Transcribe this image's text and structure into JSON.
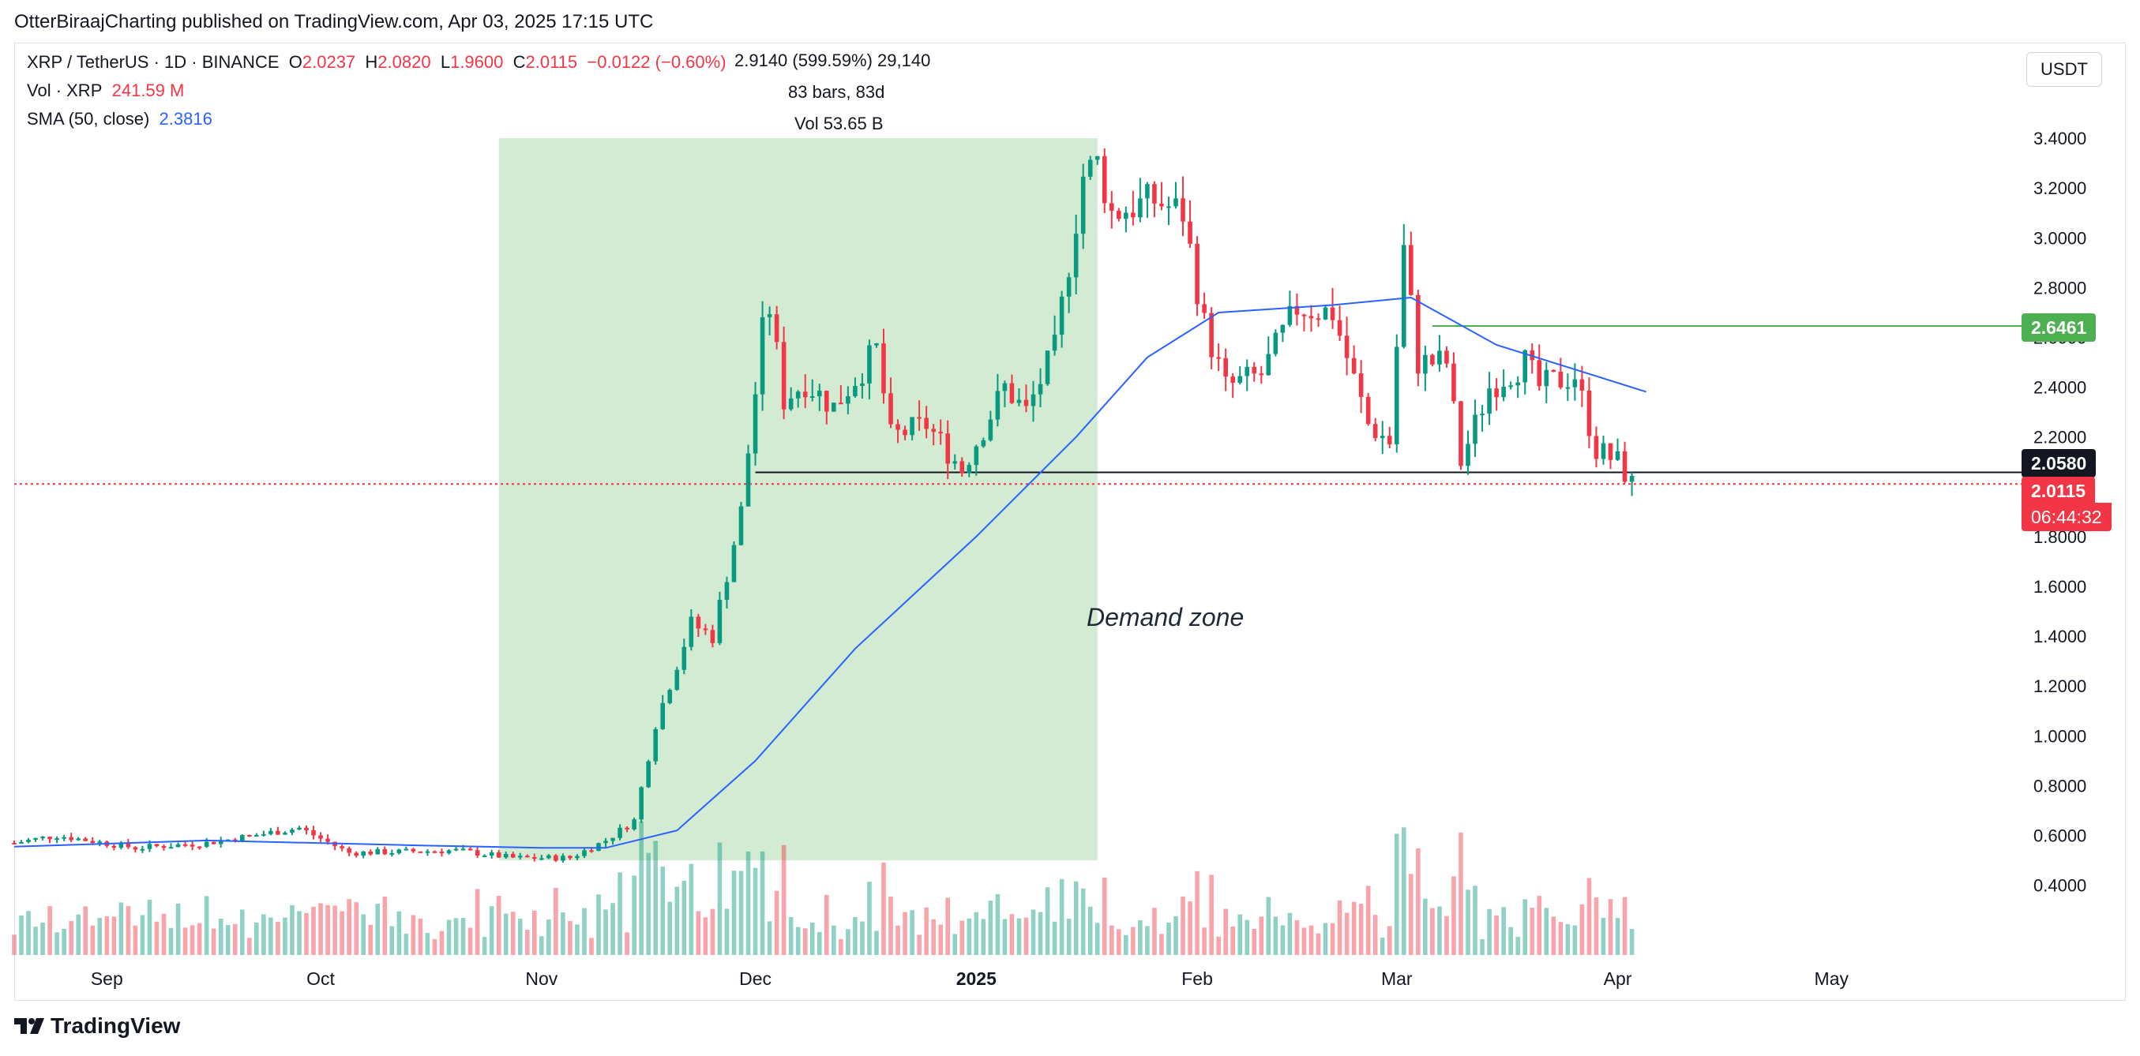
{
  "publisher_line": "OtterBiraajCharting published on TradingView.com, Apr 03, 2025 17:15 UTC",
  "legend": {
    "symbol": "XRP / TetherUS · 1D · BINANCE",
    "o_label": "O",
    "o_value": "2.0237",
    "h_label": "H",
    "h_value": "2.0820",
    "l_label": "L",
    "l_value": "1.9600",
    "c_label": "C",
    "c_value": "2.0115",
    "change": "−0.0122 (−0.60%)",
    "vol_label": "Vol · XRP",
    "vol_value": "241.59 M",
    "sma_label": "SMA (50, close)",
    "sma_value": "2.3816"
  },
  "measure": {
    "line1": "2.9140 (599.59%) 29,140",
    "line2": "83 bars, 83d",
    "line3": "Vol 53.65 B"
  },
  "currency_button": "USDT",
  "price_tags": {
    "resistance": "2.6461",
    "support": "2.0580",
    "last_price": "2.0115",
    "countdown": "06:44:32"
  },
  "annotation": "Demand zone",
  "brand": "TradingView",
  "colors": {
    "up": "#089981",
    "down": "#f23645",
    "sma": "#2962ff",
    "zone": "#cde9cd",
    "resistance": "#4caf50",
    "support": "#131722"
  },
  "chart_data": {
    "type": "candlestick",
    "symbol": "XRP / TetherUS",
    "interval": "1D",
    "exchange": "BINANCE",
    "y_axis": {
      "ticks": [
        0.4,
        0.6,
        0.8,
        1.0,
        1.2,
        1.4,
        1.6,
        1.8,
        2.0,
        2.2,
        2.4,
        2.6,
        2.8,
        3.0,
        3.2,
        3.4
      ],
      "tick_labels": [
        "0.4000",
        "0.6000",
        "0.8000",
        "1.0000",
        "1.2000",
        "1.4000",
        "1.6000",
        "1.8000",
        "2.0000",
        "2.2000",
        "2.4000",
        "2.6000",
        "2.8000",
        "3.0000",
        "3.2000",
        "3.4000"
      ],
      "range": [
        0.12,
        3.6
      ]
    },
    "x_axis": {
      "range": [
        "2024-08-19",
        "2025-05-31"
      ],
      "ticks": [
        {
          "date": "2024-09-01",
          "label": "Sep"
        },
        {
          "date": "2024-10-01",
          "label": "Oct"
        },
        {
          "date": "2024-11-01",
          "label": "Nov"
        },
        {
          "date": "2024-12-01",
          "label": "Dec"
        },
        {
          "date": "2025-01-01",
          "label": "2025"
        },
        {
          "date": "2025-02-01",
          "label": "Feb"
        },
        {
          "date": "2025-03-01",
          "label": "Mar"
        },
        {
          "date": "2025-04-01",
          "label": "Apr"
        },
        {
          "date": "2025-05-01",
          "label": "May"
        }
      ]
    },
    "keypoints": [
      [
        "2024-08-19",
        0.57
      ],
      [
        "2024-08-25",
        0.6
      ],
      [
        "2024-09-05",
        0.55
      ],
      [
        "2024-09-15",
        0.57
      ],
      [
        "2024-09-28",
        0.63
      ],
      [
        "2024-10-05",
        0.53
      ],
      [
        "2024-10-20",
        0.54
      ],
      [
        "2024-10-28",
        0.51
      ],
      [
        "2024-11-05",
        0.51
      ],
      [
        "2024-11-10",
        0.58
      ],
      [
        "2024-11-14",
        0.66
      ],
      [
        "2024-11-17",
        1.05
      ],
      [
        "2024-11-22",
        1.45
      ],
      [
        "2024-11-25",
        1.4
      ],
      [
        "2024-11-29",
        1.9
      ],
      [
        "2024-12-02",
        2.62
      ],
      [
        "2024-12-03",
        2.72
      ],
      [
        "2024-12-05",
        2.35
      ],
      [
        "2024-12-08",
        2.42
      ],
      [
        "2024-12-12",
        2.32
      ],
      [
        "2024-12-18",
        2.55
      ],
      [
        "2024-12-20",
        2.2
      ],
      [
        "2024-12-25",
        2.25
      ],
      [
        "2024-12-30",
        2.07
      ],
      [
        "2025-01-05",
        2.4
      ],
      [
        "2025-01-08",
        2.3
      ],
      [
        "2025-01-12",
        2.55
      ],
      [
        "2025-01-16",
        3.25
      ],
      [
        "2025-01-18",
        3.3
      ],
      [
        "2025-01-20",
        3.1
      ],
      [
        "2025-01-26",
        3.15
      ],
      [
        "2025-01-30",
        3.1
      ],
      [
        "2025-02-02",
        2.65
      ],
      [
        "2025-02-05",
        2.4
      ],
      [
        "2025-02-10",
        2.45
      ],
      [
        "2025-02-15",
        2.72
      ],
      [
        "2025-02-20",
        2.7
      ],
      [
        "2025-02-25",
        2.25
      ],
      [
        "2025-02-28",
        2.18
      ],
      [
        "2025-03-02",
        2.95
      ],
      [
        "2025-03-04",
        2.5
      ],
      [
        "2025-03-08",
        2.5
      ],
      [
        "2025-03-10",
        2.1
      ],
      [
        "2025-03-14",
        2.4
      ],
      [
        "2025-03-19",
        2.5
      ],
      [
        "2025-03-21",
        2.4
      ],
      [
        "2025-03-26",
        2.45
      ],
      [
        "2025-03-29",
        2.15
      ],
      [
        "2025-04-01",
        2.1
      ],
      [
        "2025-04-03",
        2.0115
      ]
    ],
    "sma": {
      "name": "SMA (50, close)",
      "points": [
        [
          "2024-08-19",
          0.555
        ],
        [
          "2024-09-15",
          0.58
        ],
        [
          "2024-10-15",
          0.56
        ],
        [
          "2024-11-01",
          0.55
        ],
        [
          "2024-11-10",
          0.55
        ],
        [
          "2024-11-20",
          0.62
        ],
        [
          "2024-12-01",
          0.9
        ],
        [
          "2024-12-15",
          1.35
        ],
        [
          "2025-01-01",
          1.8
        ],
        [
          "2025-01-15",
          2.2
        ],
        [
          "2025-01-25",
          2.52
        ],
        [
          "2025-02-04",
          2.7
        ],
        [
          "2025-02-20",
          2.73
        ],
        [
          "2025-03-03",
          2.76
        ],
        [
          "2025-03-15",
          2.57
        ],
        [
          "2025-04-05",
          2.3816
        ]
      ]
    },
    "horizontal_lines": [
      {
        "value": 2.6461,
        "from": "2025-03-06",
        "to": "2025-05-31",
        "color": "#4caf50"
      },
      {
        "value": 2.058,
        "from": "2024-12-01",
        "to": "2025-05-31",
        "color": "#131722"
      },
      {
        "value": 2.0115,
        "from": "2024-08-19",
        "to": "2025-05-31",
        "color": "#f23645",
        "dashed": true
      }
    ],
    "demand_zone": {
      "x0": "2024-10-26",
      "x1": "2025-01-18",
      "y0": 0.5,
      "y1": 3.4,
      "label": "Demand zone"
    },
    "volume": {
      "label": "Vol · XRP",
      "last": "241.59 M"
    }
  }
}
